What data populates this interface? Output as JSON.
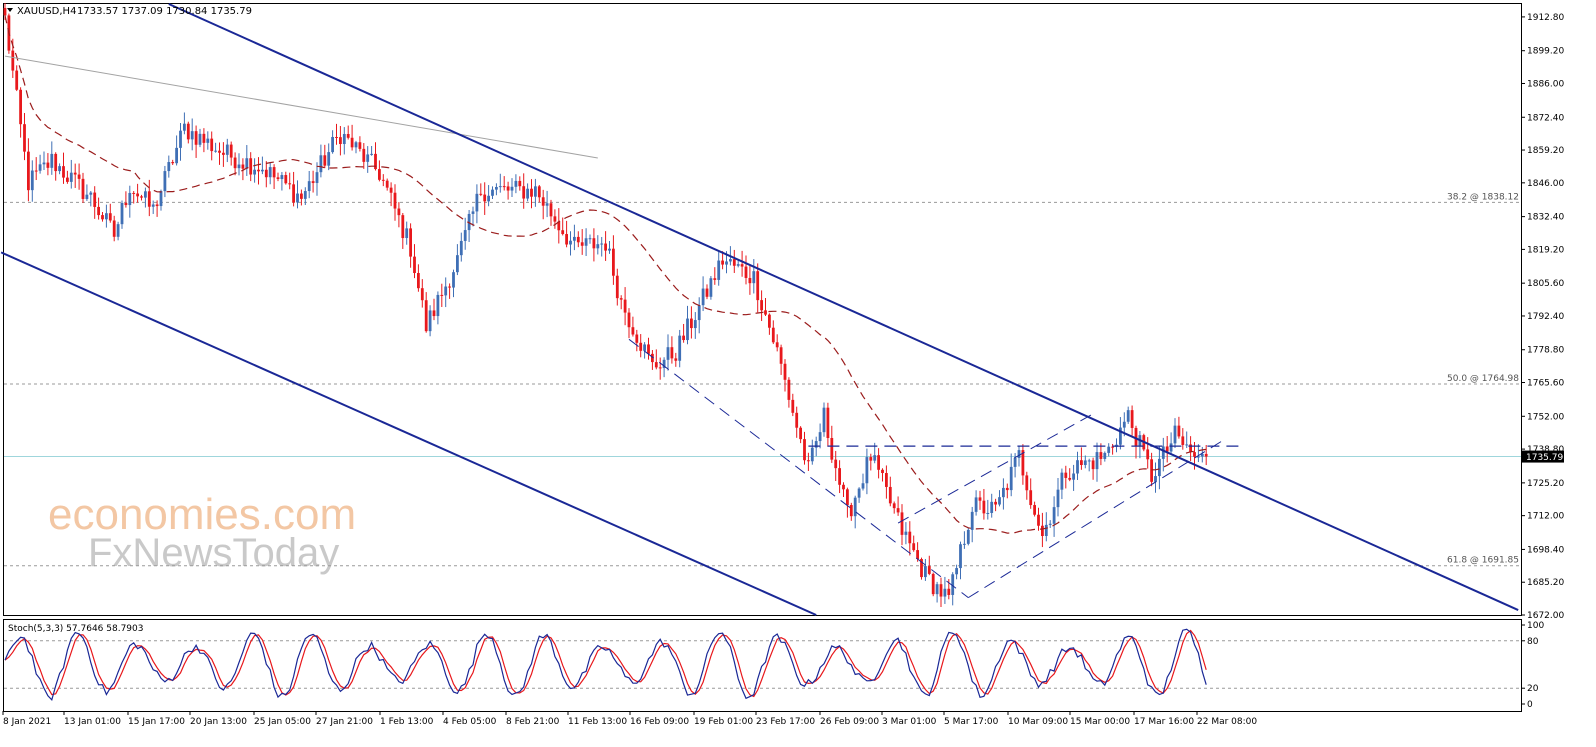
{
  "header": {
    "symbol_label": "XAUUSD,H4",
    "ohlc": "1733.57 1737.09 1730.84 1735.79"
  },
  "watermark": {
    "brand": "economies.com",
    "sub": "FxNewsToday"
  },
  "price_axis": {
    "ticks": [
      "1912.80",
      "1899.20",
      "1886.00",
      "1872.40",
      "1859.20",
      "1846.00",
      "1832.40",
      "1819.20",
      "1805.60",
      "1792.40",
      "1778.80",
      "1765.60",
      "1752.00",
      "1738.80",
      "1725.20",
      "1712.00",
      "1698.40",
      "1685.20",
      "1672.00"
    ],
    "current_price": "1735.79",
    "range": [
      1672.0,
      1918.0
    ]
  },
  "time_axis": {
    "labels": [
      "8 Jan 2021",
      "13 Jan 01:00",
      "15 Jan 17:00",
      "20 Jan 13:00",
      "25 Jan 05:00",
      "27 Jan 21:00",
      "1 Feb 13:00",
      "4 Feb 05:00",
      "8 Feb 21:00",
      "11 Feb 13:00",
      "16 Feb 09:00",
      "19 Feb 01:00",
      "23 Feb 17:00",
      "26 Feb 09:00",
      "3 Mar 01:00",
      "5 Mar 17:00",
      "10 Mar 09:00",
      "15 Mar 00:00",
      "17 Mar 16:00",
      "22 Mar 08:00"
    ]
  },
  "fib_levels": [
    {
      "label": "38.2 @ 1838.12",
      "price": 1838.12
    },
    {
      "label": "50.0 @ 1764.98",
      "price": 1764.98
    },
    {
      "label": "61.8 @ 1691.85",
      "price": 1691.85
    }
  ],
  "stoch": {
    "label": "Stoch(5,3,3) 57.7646 58.7903",
    "ticks": [
      "100",
      "80",
      "20",
      "0"
    ],
    "levels": [
      80,
      20
    ]
  },
  "colors": {
    "bull": "#3f6fb5",
    "bear": "#e8181c",
    "channel": "#1a2896",
    "ma": "#9b1c1c",
    "current_line": "#9fd6dc",
    "stoch_main": "#1a2896",
    "stoch_signal": "#e8181c"
  },
  "chart_data": {
    "type": "candlestick",
    "symbol": "XAUUSD",
    "timeframe": "H4",
    "y_range": [
      1672.0,
      1918.0
    ],
    "path_anchors": [
      {
        "bar": 0,
        "price": 1912
      },
      {
        "bar": 6,
        "price": 1846
      },
      {
        "bar": 12,
        "price": 1855
      },
      {
        "bar": 22,
        "price": 1840
      },
      {
        "bar": 28,
        "price": 1825
      },
      {
        "bar": 32,
        "price": 1845
      },
      {
        "bar": 38,
        "price": 1835
      },
      {
        "bar": 46,
        "price": 1868
      },
      {
        "bar": 56,
        "price": 1858
      },
      {
        "bar": 66,
        "price": 1852
      },
      {
        "bar": 76,
        "price": 1840
      },
      {
        "bar": 86,
        "price": 1866
      },
      {
        "bar": 96,
        "price": 1850
      },
      {
        "bar": 104,
        "price": 1820
      },
      {
        "bar": 108,
        "price": 1788
      },
      {
        "bar": 116,
        "price": 1815
      },
      {
        "bar": 122,
        "price": 1843
      },
      {
        "bar": 136,
        "price": 1843
      },
      {
        "bar": 146,
        "price": 1820
      },
      {
        "bar": 154,
        "price": 1822
      },
      {
        "bar": 158,
        "price": 1798
      },
      {
        "bar": 166,
        "price": 1772
      },
      {
        "bar": 172,
        "price": 1778
      },
      {
        "bar": 178,
        "price": 1796
      },
      {
        "bar": 184,
        "price": 1815
      },
      {
        "bar": 192,
        "price": 1808
      },
      {
        "bar": 198,
        "price": 1778
      },
      {
        "bar": 206,
        "price": 1730
      },
      {
        "bar": 210,
        "price": 1752
      },
      {
        "bar": 216,
        "price": 1712
      },
      {
        "bar": 222,
        "price": 1736
      },
      {
        "bar": 230,
        "price": 1706
      },
      {
        "bar": 236,
        "price": 1688
      },
      {
        "bar": 242,
        "price": 1678
      },
      {
        "bar": 248,
        "price": 1716
      },
      {
        "bar": 254,
        "price": 1714
      },
      {
        "bar": 260,
        "price": 1736
      },
      {
        "bar": 266,
        "price": 1704
      },
      {
        "bar": 272,
        "price": 1730
      },
      {
        "bar": 282,
        "price": 1736
      },
      {
        "bar": 288,
        "price": 1752
      },
      {
        "bar": 294,
        "price": 1728
      },
      {
        "bar": 300,
        "price": 1744
      },
      {
        "bar": 306,
        "price": 1734
      },
      {
        "bar": 308,
        "price": 1735.79
      }
    ]
  }
}
